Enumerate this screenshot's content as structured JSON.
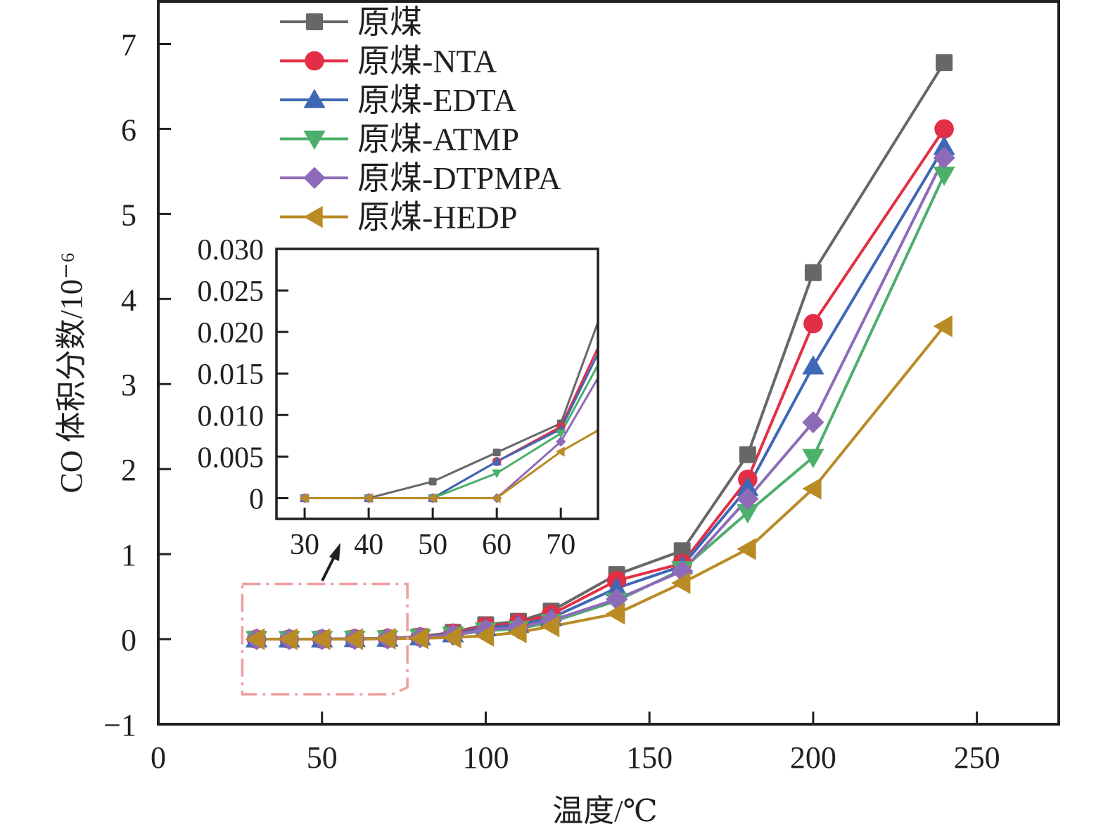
{
  "chart_data": {
    "type": "line",
    "title": "",
    "xlabel": "温度/℃",
    "ylabel": "CO 体积分数/10⁻⁶",
    "xlim": [
      0,
      275
    ],
    "ylim": [
      -1,
      7.5
    ],
    "xticks": [
      0,
      50,
      100,
      150,
      200,
      250
    ],
    "xtick_labels": [
      "0",
      "50",
      "100",
      "150",
      "200",
      "250"
    ],
    "yticks": [
      -1,
      0,
      1,
      2,
      3,
      4,
      5,
      6,
      7
    ],
    "ytick_labels": [
      "−1",
      "0",
      "1",
      "2",
      "3",
      "4",
      "5",
      "6",
      "7"
    ],
    "grid": false,
    "legend_position": "top-left",
    "x": [
      30,
      40,
      50,
      60,
      70,
      80,
      90,
      100,
      110,
      120,
      140,
      160,
      180,
      200,
      240
    ],
    "series": [
      {
        "name": "原煤",
        "color": "#686767",
        "marker": "square",
        "values": [
          0,
          0,
          0.002,
          0.0055,
          0.009,
          0.03,
          0.08,
          0.17,
          0.21,
          0.33,
          0.76,
          1.04,
          2.17,
          4.31,
          6.78
        ]
      },
      {
        "name": "原煤-NTA",
        "color": "#e32f45",
        "marker": "circle",
        "values": [
          0,
          0,
          0,
          0.0044,
          0.0086,
          0.025,
          0.07,
          0.15,
          0.19,
          0.29,
          0.69,
          0.89,
          1.88,
          3.71,
          6.0
        ]
      },
      {
        "name": "原煤-EDTA",
        "color": "#3e68b6",
        "marker": "triangle-up",
        "values": [
          0,
          0,
          0,
          0.0044,
          0.0083,
          0.024,
          0.06,
          0.13,
          0.17,
          0.25,
          0.6,
          0.86,
          1.78,
          3.21,
          5.79
        ]
      },
      {
        "name": "原煤-ATMP",
        "color": "#4caf6a",
        "marker": "triangle-down",
        "values": [
          0,
          0,
          0,
          0.003,
          0.0078,
          0.022,
          0.05,
          0.1,
          0.12,
          0.2,
          0.45,
          0.82,
          1.49,
          2.14,
          5.46
        ]
      },
      {
        "name": "原煤-DTPMPA",
        "color": "#8e6bb8",
        "marker": "diamond",
        "values": [
          0,
          0,
          0,
          0,
          0.0068,
          0.02,
          0.05,
          0.11,
          0.14,
          0.22,
          0.47,
          0.8,
          1.65,
          2.55,
          5.66
        ]
      },
      {
        "name": "原煤-HEDP",
        "color": "#b98b24",
        "marker": "triangle-left",
        "values": [
          0,
          0,
          0,
          0,
          0.0056,
          0.01,
          0.02,
          0.04,
          0.08,
          0.15,
          0.3,
          0.66,
          1.06,
          1.77,
          3.68
        ]
      }
    ],
    "inset": {
      "xlim": [
        25.6,
        75.8
      ],
      "ylim": [
        -0.0025,
        0.03
      ],
      "xticks": [
        30,
        40,
        50,
        60,
        70
      ],
      "xtick_labels": [
        "30",
        "40",
        "50",
        "60",
        "70"
      ],
      "yticks": [
        0,
        0.005,
        0.01,
        0.015,
        0.02,
        0.025,
        0.03
      ],
      "ytick_labels": [
        "0",
        "0.005",
        "0.010",
        "0.015",
        "0.020",
        "0.025",
        "0.030"
      ],
      "zoom_region": {
        "x": [
          25,
          75
        ],
        "y": [
          -0.65,
          0.65
        ]
      },
      "highlight_color": "#ee9ea1"
    }
  }
}
